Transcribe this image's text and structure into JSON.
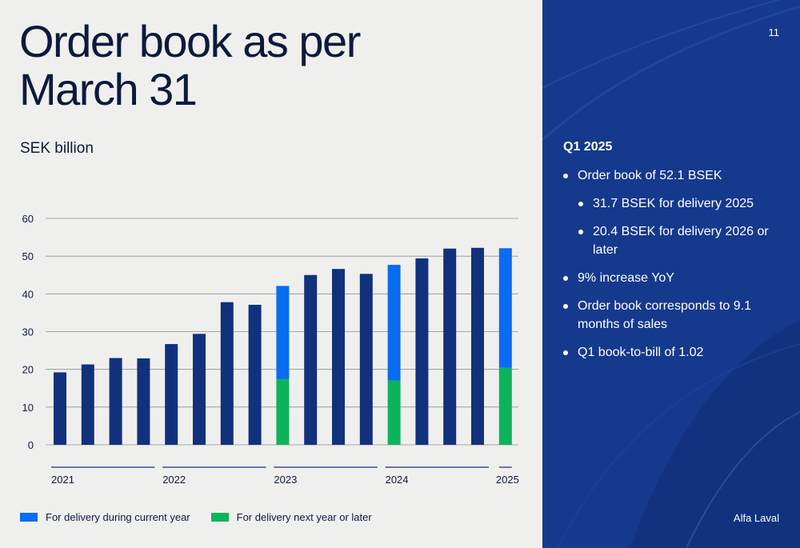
{
  "slide": {
    "title_line1": "Order book as per",
    "title_line2": "March 31",
    "subtitle": "SEK billion",
    "page_number": "11",
    "brand": "Alfa Laval"
  },
  "sidebar": {
    "heading": "Q1 2025",
    "bullets": [
      {
        "text": "Order book of 52.1 BSEK",
        "level": 1
      },
      {
        "text": "31.7 BSEK for delivery 2025",
        "level": 2
      },
      {
        "text": "20.4 BSEK for delivery 2026 or later",
        "level": 2
      },
      {
        "text": "9% increase YoY",
        "level": 1
      },
      {
        "text": "Order book corresponds to 9.1 months of sales",
        "level": 1
      },
      {
        "text": "Q1 book-to-bill of 1.02",
        "level": 1
      }
    ]
  },
  "legend": {
    "current_year": "For delivery during current year",
    "next_year": "For delivery next year or later"
  },
  "colors": {
    "total_bar": "#12317c",
    "current_year": "#0a6cf0",
    "next_year": "#0db35a",
    "panel_bg": "#15398c",
    "title_text": "#0d1a3d"
  },
  "chart_data": {
    "type": "bar",
    "stacked_where_split": true,
    "ylim": [
      0,
      60
    ],
    "yticks": [
      0,
      10,
      20,
      30,
      40,
      50,
      60
    ],
    "year_groups": [
      {
        "label": "2021",
        "start": 0,
        "end": 3
      },
      {
        "label": "2022",
        "start": 4,
        "end": 7
      },
      {
        "label": "2023",
        "start": 8,
        "end": 11
      },
      {
        "label": "2024",
        "start": 12,
        "end": 15
      },
      {
        "label": "2025",
        "start": 16,
        "end": 16
      }
    ],
    "bars": [
      {
        "total": 19.2
      },
      {
        "total": 21.3
      },
      {
        "total": 23.0
      },
      {
        "total": 22.9
      },
      {
        "total": 26.7
      },
      {
        "total": 29.4
      },
      {
        "total": 37.8
      },
      {
        "total": 37.1
      },
      {
        "total": 42.1,
        "current_year": 24.7,
        "next_year": 17.4
      },
      {
        "total": 45.0
      },
      {
        "total": 46.6
      },
      {
        "total": 45.3
      },
      {
        "total": 47.7,
        "current_year": 30.7,
        "next_year": 17.0
      },
      {
        "total": 49.4
      },
      {
        "total": 52.0
      },
      {
        "total": 52.2
      },
      {
        "total": 52.1,
        "current_year": 31.7,
        "next_year": 20.4
      }
    ]
  }
}
